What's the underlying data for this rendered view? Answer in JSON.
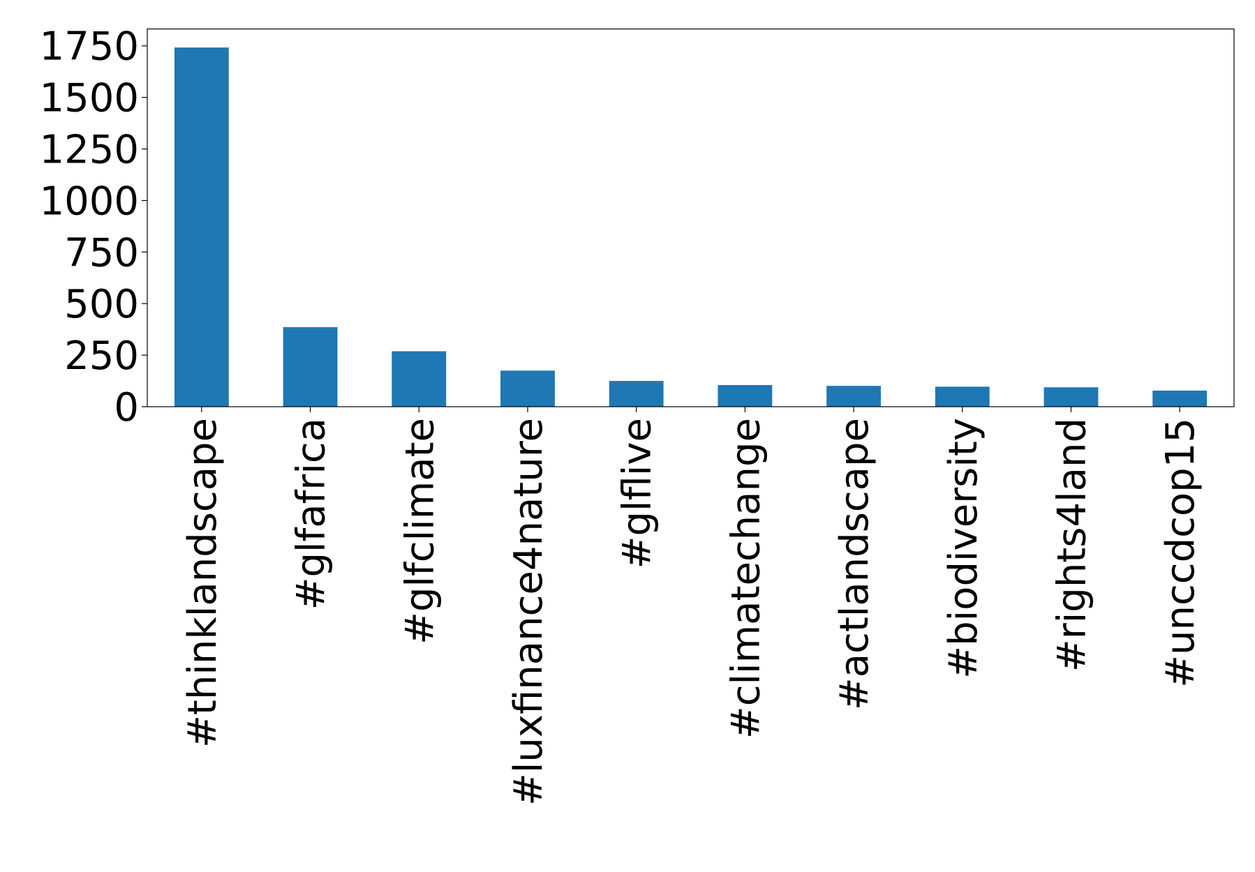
{
  "chart_data": {
    "type": "bar",
    "categories": [
      "#thinklandscape",
      "#glfafrica",
      "#glfclimate",
      "#luxfinance4nature",
      "#glflive",
      "#climatechange",
      "#actlandscape",
      "#biodiversity",
      "#rights4land",
      "#unccdcop15"
    ],
    "values": [
      1742,
      386,
      269,
      175,
      125,
      105,
      101,
      97,
      94,
      78
    ],
    "color": "#1f77b4",
    "ylim": [
      0,
      1832
    ],
    "yticks": [
      0,
      250,
      500,
      750,
      1000,
      1250,
      1500,
      1750
    ],
    "grid": false
  }
}
